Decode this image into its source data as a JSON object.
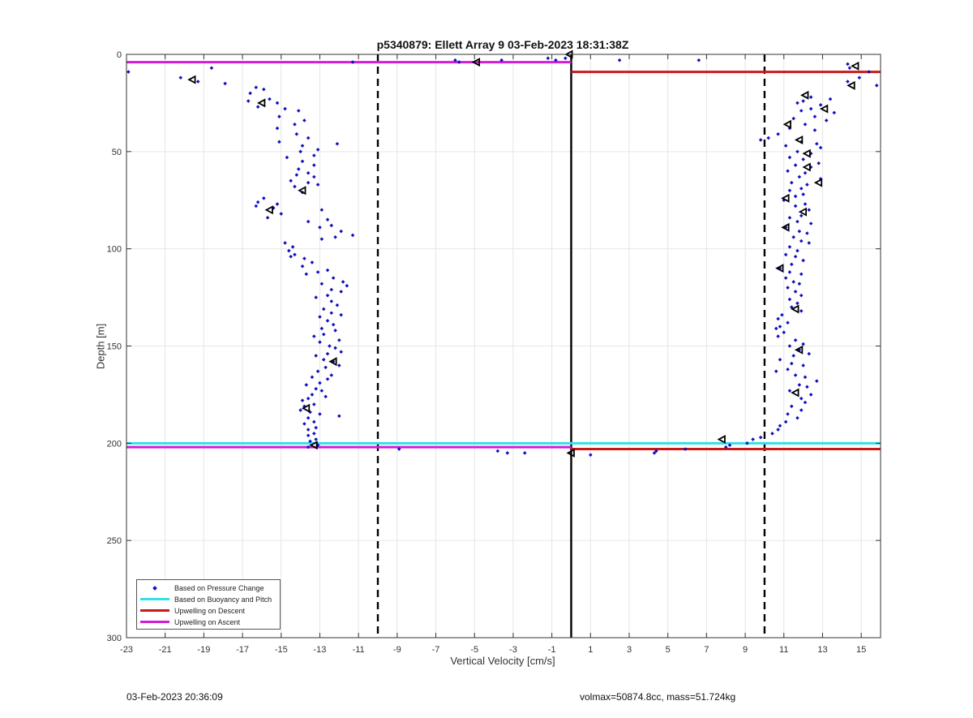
{
  "title": "p5340879: Ellett Array 9 03-Feb-2023 18:31:38Z",
  "footer_left": "03-Feb-2023 20:36:09",
  "footer_right": "volmax=50874.8cc, mass=51.724kg",
  "chart_data": {
    "type": "scatter",
    "title": "p5340879: Ellett Array 9 03-Feb-2023 18:31:38Z",
    "xlabel": "Vertical Velocity [cm/s]",
    "ylabel": "Depth [m]",
    "xlim": [
      -23,
      16
    ],
    "ylim": [
      0,
      300
    ],
    "y_reversed": true,
    "xticks": [
      -23,
      -21,
      -19,
      -17,
      -15,
      -13,
      -11,
      -9,
      -7,
      -5,
      -3,
      -1,
      1,
      3,
      5,
      7,
      9,
      11,
      13,
      15
    ],
    "yticks": [
      0,
      50,
      100,
      150,
      200,
      250,
      300
    ],
    "grid": true,
    "legend_position": "bottom-left",
    "colors": {
      "pressure_change": "#1010c0",
      "buoyancy_pitch": "#33e0e6",
      "upwelling_descent": "#c81818",
      "upwelling_ascent": "#d21ed2",
      "reference": "#000000"
    },
    "legend": [
      {
        "label": "Based on Pressure Change",
        "key": "pressure_change",
        "style": "dot"
      },
      {
        "label": "Based on Buoyancy and Pitch",
        "key": "buoyancy_pitch",
        "style": "line"
      },
      {
        "label": "Upwelling on Descent",
        "key": "upwelling_descent",
        "style": "line"
      },
      {
        "label": "Upwelling on Ascent",
        "key": "upwelling_ascent",
        "style": "line"
      }
    ],
    "reference_lines": {
      "zero_velocity": 0,
      "dashed_limits": [
        -10,
        10
      ]
    },
    "horizontal_lines": [
      {
        "series": "upwelling_ascent",
        "y": 4,
        "x_from": -23,
        "x_to": 0
      },
      {
        "series": "upwelling_descent",
        "y": 9,
        "x_from": 0,
        "x_to": 16
      },
      {
        "series": "buoyancy_pitch",
        "y": 200,
        "x_from": -23,
        "x_to": 16
      },
      {
        "series": "upwelling_ascent",
        "y": 202,
        "x_from": -23,
        "x_to": 0
      },
      {
        "series": "upwelling_descent",
        "y": 203,
        "x_from": 0,
        "x_to": 16
      }
    ],
    "pressure_change_points": [
      [
        -22.9,
        9
      ],
      [
        -20.2,
        12
      ],
      [
        -18.6,
        7
      ],
      [
        -19.3,
        14
      ],
      [
        -17.9,
        15
      ],
      [
        -11.3,
        4
      ],
      [
        -6.0,
        3
      ],
      [
        -5.8,
        4
      ],
      [
        -3.6,
        3
      ],
      [
        -1.2,
        2
      ],
      [
        -0.8,
        3
      ],
      [
        -0.3,
        2
      ],
      [
        2.5,
        3
      ],
      [
        6.6,
        3
      ],
      [
        14.3,
        5
      ],
      [
        14.4,
        7
      ],
      [
        15.4,
        9
      ],
      [
        14.9,
        12
      ],
      [
        14.3,
        14
      ],
      [
        15.8,
        16
      ],
      [
        -16.3,
        17
      ],
      [
        -15.9,
        18
      ],
      [
        -16.6,
        20
      ],
      [
        -15.6,
        23
      ],
      [
        -16.7,
        24
      ],
      [
        -15.2,
        25
      ],
      [
        -16.2,
        27
      ],
      [
        -14.8,
        28
      ],
      [
        -14.1,
        29
      ],
      [
        -15.1,
        32
      ],
      [
        -13.8,
        34
      ],
      [
        -14.3,
        36
      ],
      [
        -15.2,
        38
      ],
      [
        -14.2,
        41
      ],
      [
        -13.6,
        43
      ],
      [
        -15.1,
        45
      ],
      [
        -12.1,
        46
      ],
      [
        -13.9,
        47
      ],
      [
        -13.1,
        49
      ],
      [
        -14.0,
        50
      ],
      [
        -13.3,
        52
      ],
      [
        -14.7,
        53
      ],
      [
        -13.9,
        55
      ],
      [
        -13.3,
        57
      ],
      [
        -14.1,
        59
      ],
      [
        -13.6,
        61
      ],
      [
        -14.2,
        62
      ],
      [
        -13.3,
        63
      ],
      [
        -14.5,
        65
      ],
      [
        -13.6,
        66
      ],
      [
        -13.1,
        67
      ],
      [
        -14.3,
        68
      ],
      [
        -13.9,
        71
      ],
      [
        -15.9,
        74
      ],
      [
        -16.2,
        76
      ],
      [
        -15.2,
        77
      ],
      [
        -16.3,
        78
      ],
      [
        -15.4,
        79
      ],
      [
        -12.9,
        80
      ],
      [
        -15.0,
        82
      ],
      [
        -15.7,
        84
      ],
      [
        -12.6,
        85
      ],
      [
        -13.6,
        86
      ],
      [
        -12.4,
        88
      ],
      [
        -13.0,
        89
      ],
      [
        -11.9,
        91
      ],
      [
        -11.3,
        93
      ],
      [
        -12.2,
        94
      ],
      [
        -12.9,
        95
      ],
      [
        -14.8,
        97
      ],
      [
        -14.4,
        99
      ],
      [
        -14.6,
        101
      ],
      [
        -14.3,
        103
      ],
      [
        -14.5,
        104
      ],
      [
        -13.8,
        105
      ],
      [
        -13.4,
        107
      ],
      [
        -13.9,
        109
      ],
      [
        -12.6,
        111
      ],
      [
        -13.1,
        112
      ],
      [
        -13.7,
        113
      ],
      [
        -12.3,
        115
      ],
      [
        -11.8,
        117
      ],
      [
        -12.9,
        118
      ],
      [
        -11.6,
        119
      ],
      [
        -12.4,
        121
      ],
      [
        -11.9,
        122
      ],
      [
        -12.6,
        124
      ],
      [
        -13.2,
        125
      ],
      [
        -12.4,
        127
      ],
      [
        -12.1,
        129
      ],
      [
        -12.8,
        131
      ],
      [
        -12.4,
        133
      ],
      [
        -11.9,
        134
      ],
      [
        -13.0,
        135
      ],
      [
        -12.6,
        137
      ],
      [
        -12.3,
        139
      ],
      [
        -12.9,
        141
      ],
      [
        -12.2,
        142
      ],
      [
        -12.8,
        144
      ],
      [
        -13.3,
        145
      ],
      [
        -12.0,
        147
      ],
      [
        -13.0,
        148
      ],
      [
        -12.5,
        150
      ],
      [
        -12.2,
        151
      ],
      [
        -11.9,
        153
      ],
      [
        -12.6,
        154
      ],
      [
        -13.2,
        155
      ],
      [
        -12.8,
        157
      ],
      [
        -12.3,
        158
      ],
      [
        -12.0,
        160
      ],
      [
        -12.7,
        161
      ],
      [
        -13.1,
        163
      ],
      [
        -12.4,
        165
      ],
      [
        -13.4,
        166
      ],
      [
        -12.6,
        167
      ],
      [
        -13.0,
        169
      ],
      [
        -13.7,
        170
      ],
      [
        -13.2,
        172
      ],
      [
        -12.9,
        173
      ],
      [
        -13.4,
        175
      ],
      [
        -12.7,
        176
      ],
      [
        -13.6,
        177
      ],
      [
        -13.9,
        178
      ],
      [
        -13.3,
        180
      ],
      [
        -13.8,
        181
      ],
      [
        -14.0,
        183
      ],
      [
        -13.5,
        184
      ],
      [
        -13.0,
        185
      ],
      [
        -12.0,
        186
      ],
      [
        -13.6,
        187
      ],
      [
        -13.3,
        189
      ],
      [
        -13.8,
        190
      ],
      [
        -13.2,
        192
      ],
      [
        -13.6,
        193
      ],
      [
        -13.3,
        195
      ],
      [
        -13.6,
        196
      ],
      [
        -13.2,
        198
      ],
      [
        -13.5,
        199
      ],
      [
        -13.1,
        201
      ],
      [
        -13.6,
        202
      ],
      [
        -8.9,
        203
      ],
      [
        -3.8,
        204
      ],
      [
        -3.3,
        205
      ],
      [
        -2.4,
        205
      ],
      [
        1.0,
        206
      ],
      [
        4.3,
        205
      ],
      [
        4.4,
        204
      ],
      [
        5.9,
        203
      ],
      [
        12.4,
        22
      ],
      [
        12.0,
        24
      ],
      [
        11.7,
        25
      ],
      [
        13.4,
        23
      ],
      [
        12.9,
        26
      ],
      [
        12.4,
        28
      ],
      [
        11.9,
        29
      ],
      [
        13.6,
        30
      ],
      [
        12.6,
        32
      ],
      [
        11.5,
        33
      ],
      [
        13.2,
        34
      ],
      [
        12.1,
        36
      ],
      [
        11.3,
        38
      ],
      [
        12.6,
        39
      ],
      [
        10.7,
        41
      ],
      [
        10.2,
        43
      ],
      [
        9.8,
        44
      ],
      [
        11.9,
        45
      ],
      [
        12.7,
        46
      ],
      [
        11.1,
        47
      ],
      [
        12.9,
        48
      ],
      [
        11.7,
        50
      ],
      [
        12.4,
        51
      ],
      [
        11.3,
        53
      ],
      [
        12.0,
        54
      ],
      [
        12.8,
        56
      ],
      [
        11.6,
        57
      ],
      [
        12.4,
        58
      ],
      [
        11.2,
        60
      ],
      [
        12.1,
        61
      ],
      [
        11.8,
        63
      ],
      [
        12.9,
        64
      ],
      [
        11.4,
        66
      ],
      [
        12.2,
        67
      ],
      [
        11.9,
        69
      ],
      [
        11.3,
        70
      ],
      [
        12.0,
        72
      ],
      [
        11.6,
        73
      ],
      [
        11.0,
        75
      ],
      [
        12.1,
        77
      ],
      [
        11.6,
        78
      ],
      [
        12.3,
        80
      ],
      [
        11.9,
        83
      ],
      [
        11.3,
        84
      ],
      [
        11.7,
        86
      ],
      [
        12.4,
        87
      ],
      [
        11.1,
        89
      ],
      [
        11.8,
        91
      ],
      [
        12.2,
        92
      ],
      [
        11.5,
        94
      ],
      [
        11.9,
        96
      ],
      [
        12.3,
        97
      ],
      [
        11.3,
        99
      ],
      [
        11.7,
        101
      ],
      [
        11.1,
        103
      ],
      [
        11.6,
        104
      ],
      [
        12.0,
        106
      ],
      [
        11.4,
        108
      ],
      [
        10.8,
        110
      ],
      [
        11.3,
        112
      ],
      [
        11.9,
        113
      ],
      [
        11.1,
        115
      ],
      [
        11.5,
        117
      ],
      [
        11.8,
        118
      ],
      [
        11.2,
        120
      ],
      [
        11.6,
        122
      ],
      [
        11.9,
        124
      ],
      [
        11.3,
        126
      ],
      [
        11.7,
        128
      ],
      [
        11.4,
        130
      ],
      [
        11.9,
        132
      ],
      [
        10.9,
        134
      ],
      [
        10.7,
        136
      ],
      [
        11.2,
        138
      ],
      [
        10.8,
        140
      ],
      [
        10.6,
        141
      ],
      [
        11.0,
        143
      ],
      [
        10.7,
        145
      ],
      [
        11.6,
        147
      ],
      [
        12.0,
        149
      ],
      [
        11.3,
        150
      ],
      [
        11.8,
        152
      ],
      [
        12.3,
        154
      ],
      [
        11.5,
        155
      ],
      [
        10.8,
        157
      ],
      [
        11.4,
        159
      ],
      [
        12.0,
        160
      ],
      [
        11.2,
        162
      ],
      [
        10.6,
        163
      ],
      [
        11.6,
        165
      ],
      [
        12.1,
        166
      ],
      [
        12.7,
        168
      ],
      [
        11.8,
        170
      ],
      [
        12.2,
        171
      ],
      [
        11.3,
        173
      ],
      [
        12.4,
        175
      ],
      [
        11.9,
        177
      ],
      [
        12.1,
        179
      ],
      [
        11.4,
        181
      ],
      [
        11.9,
        183
      ],
      [
        11.2,
        185
      ],
      [
        11.7,
        187
      ],
      [
        11.1,
        189
      ],
      [
        10.8,
        191
      ],
      [
        10.7,
        193
      ],
      [
        10.4,
        195
      ],
      [
        9.8,
        197
      ],
      [
        9.4,
        198
      ],
      [
        9.1,
        200
      ],
      [
        8.2,
        201
      ],
      [
        8.0,
        202
      ]
    ],
    "triangle_markers": [
      [
        -0.1,
        0
      ],
      [
        -4.9,
        4
      ],
      [
        -19.6,
        13
      ],
      [
        -16.0,
        25
      ],
      [
        -13.9,
        70
      ],
      [
        -15.6,
        80
      ],
      [
        -13.7,
        182
      ],
      [
        -12.3,
        158
      ],
      [
        -13.3,
        201
      ],
      [
        14.7,
        6
      ],
      [
        14.5,
        16
      ],
      [
        12.1,
        21
      ],
      [
        13.1,
        28
      ],
      [
        11.2,
        36
      ],
      [
        11.8,
        44
      ],
      [
        12.2,
        51
      ],
      [
        12.2,
        58
      ],
      [
        12.8,
        66
      ],
      [
        11.1,
        74
      ],
      [
        12.0,
        81
      ],
      [
        11.1,
        89
      ],
      [
        10.8,
        110
      ],
      [
        11.6,
        131
      ],
      [
        11.8,
        152
      ],
      [
        11.6,
        174
      ],
      [
        7.8,
        198
      ],
      [
        0.0,
        205
      ]
    ]
  }
}
